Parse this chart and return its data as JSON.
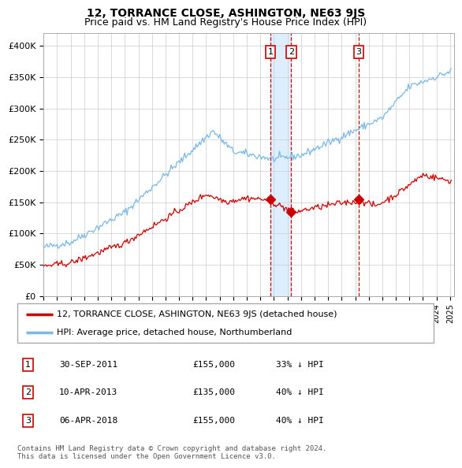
{
  "title": "12, TORRANCE CLOSE, ASHINGTON, NE63 9JS",
  "subtitle": "Price paid vs. HM Land Registry's House Price Index (HPI)",
  "ylim": [
    0,
    420000
  ],
  "yticks": [
    0,
    50000,
    100000,
    150000,
    200000,
    250000,
    300000,
    350000,
    400000
  ],
  "hpi_color": "#7ab8e8",
  "price_color": "#cc0000",
  "grid_color": "#cccccc",
  "vline_color": "#cc0000",
  "fill_color": "#ddeeff",
  "sale_dates": [
    2011.75,
    2013.27,
    2018.26
  ],
  "sale_labels": [
    "1",
    "2",
    "3"
  ],
  "sale_prices": [
    155000,
    135000,
    155000
  ],
  "sale_date_strs": [
    "30-SEP-2011",
    "10-APR-2013",
    "06-APR-2018"
  ],
  "sale_hpi_pct": [
    "33% ↓ HPI",
    "40% ↓ HPI",
    "40% ↓ HPI"
  ],
  "legend_label_price": "12, TORRANCE CLOSE, ASHINGTON, NE63 9JS (detached house)",
  "legend_label_hpi": "HPI: Average price, detached house, Northumberland",
  "footer": "Contains HM Land Registry data © Crown copyright and database right 2024.\nThis data is licensed under the Open Government Licence v3.0."
}
